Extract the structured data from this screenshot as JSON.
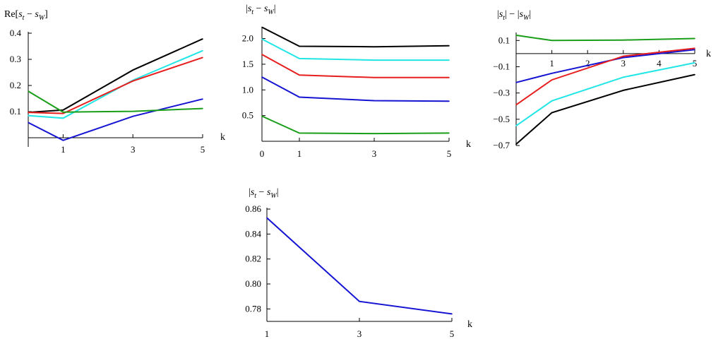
{
  "colors": {
    "black": "#000000",
    "cyan": "#22e6e6",
    "red": "#e61e1e",
    "blue": "#1414d2",
    "green": "#1a9e1a"
  },
  "chart_data": [
    {
      "id": "re-diff",
      "type": "line",
      "ylabel_parts": {
        "pre": "Re[",
        "s1": "s",
        "sub1": "t",
        "mid": " − ",
        "s2": "s",
        "sub2": "W",
        "post": "]"
      },
      "xlabel": "k",
      "xlim": [
        0,
        5
      ],
      "ylim": [
        0,
        0.4
      ],
      "xticks": [
        1,
        3,
        5
      ],
      "xtick_labels": [
        "1",
        "3",
        "5"
      ],
      "yticks": [
        0.1,
        0.2,
        0.3,
        0.4
      ],
      "ytick_labels": [
        "0.1",
        "0.2",
        "0.3",
        "0.4"
      ],
      "x": [
        0,
        1,
        3,
        5
      ],
      "series": [
        {
          "name": "black",
          "color": "#000000",
          "values": [
            0.097,
            0.106,
            0.259,
            0.378
          ]
        },
        {
          "name": "cyan",
          "color": "#22e6e6",
          "values": [
            0.085,
            0.075,
            0.22,
            0.333
          ]
        },
        {
          "name": "red",
          "color": "#e61e1e",
          "values": [
            0.097,
            0.093,
            0.217,
            0.307
          ]
        },
        {
          "name": "blue",
          "color": "#1414d2",
          "values": [
            0.058,
            -0.01,
            0.082,
            0.148
          ]
        },
        {
          "name": "green",
          "color": "#1a9e1a",
          "values": [
            0.178,
            0.098,
            0.101,
            0.112
          ]
        }
      ]
    },
    {
      "id": "abs-diff",
      "type": "line",
      "ylabel_parts": {
        "pre": "|",
        "s1": "s",
        "sub1": "t",
        "mid": " − ",
        "s2": "s",
        "sub2": "W",
        "post": "|"
      },
      "xlabel": "k",
      "xlim": [
        0,
        5
      ],
      "ylim": [
        0,
        2.2
      ],
      "xticks": [
        0,
        1,
        3,
        5
      ],
      "xtick_labels": [
        "0",
        "1",
        "3",
        "5"
      ],
      "yticks": [
        0.5,
        1.0,
        1.5,
        2.0
      ],
      "ytick_labels": [
        "0.5",
        "1.0",
        "1.5",
        "2.0"
      ],
      "x": [
        0,
        1,
        3,
        5
      ],
      "series": [
        {
          "name": "black",
          "color": "#000000",
          "values": [
            2.22,
            1.85,
            1.84,
            1.86
          ]
        },
        {
          "name": "cyan",
          "color": "#22e6e6",
          "values": [
            1.99,
            1.61,
            1.58,
            1.58
          ]
        },
        {
          "name": "red",
          "color": "#e61e1e",
          "values": [
            1.69,
            1.29,
            1.24,
            1.24
          ]
        },
        {
          "name": "blue",
          "color": "#1414d2",
          "values": [
            1.25,
            0.86,
            0.79,
            0.78
          ]
        },
        {
          "name": "green",
          "color": "#1a9e1a",
          "values": [
            0.49,
            0.16,
            0.15,
            0.16
          ]
        }
      ]
    },
    {
      "id": "abs-minus-abs",
      "type": "line",
      "ylabel_parts": {
        "pre": "|",
        "s1": "s",
        "sub1": "t",
        "mid": "| − |",
        "s2": "s",
        "sub2": "W",
        "post": "|"
      },
      "xlabel": "k",
      "xlim": [
        0,
        5
      ],
      "ylim": [
        -0.7,
        0.15
      ],
      "xaxis_at": 0,
      "xticks": [
        1,
        2,
        3,
        4,
        5
      ],
      "xtick_labels": [
        "1",
        "2",
        "3",
        "4",
        "5"
      ],
      "yticks": [
        0.1,
        -0.1,
        -0.3,
        -0.5,
        -0.7
      ],
      "ytick_labels": [
        "0.1",
        "−0.1",
        "−0.3",
        "−0.5",
        "−0.7"
      ],
      "x": [
        0,
        1,
        3,
        5
      ],
      "series": [
        {
          "name": "green",
          "color": "#1a9e1a",
          "values": [
            0.14,
            0.1,
            0.103,
            0.115
          ]
        },
        {
          "name": "blue",
          "color": "#1414d2",
          "values": [
            -0.22,
            -0.15,
            -0.03,
            0.03
          ]
        },
        {
          "name": "red",
          "color": "#e61e1e",
          "values": [
            -0.39,
            -0.2,
            -0.02,
            0.04
          ]
        },
        {
          "name": "cyan",
          "color": "#22e6e6",
          "values": [
            -0.55,
            -0.36,
            -0.18,
            -0.07
          ]
        },
        {
          "name": "black",
          "color": "#000000",
          "values": [
            -0.69,
            -0.45,
            -0.28,
            -0.16
          ]
        }
      ]
    },
    {
      "id": "abs-diff-blue",
      "type": "line",
      "ylabel_parts": {
        "pre": "|",
        "s1": "s",
        "sub1": "t",
        "mid": " − ",
        "s2": "s",
        "sub2": "W",
        "post": "|"
      },
      "xlabel": "k",
      "xlim": [
        1,
        5
      ],
      "ylim": [
        0.77,
        0.86
      ],
      "xticks": [
        1,
        3,
        5
      ],
      "xtick_labels": [
        "1",
        "3",
        "5"
      ],
      "yticks": [
        0.78,
        0.8,
        0.82,
        0.84,
        0.86
      ],
      "ytick_labels": [
        "0.78",
        "0.80",
        "0.82",
        "0.84",
        "0.86"
      ],
      "x": [
        1,
        3,
        5
      ],
      "series": [
        {
          "name": "blue",
          "color": "#1414d2",
          "values": [
            0.853,
            0.786,
            0.776
          ]
        }
      ]
    }
  ]
}
